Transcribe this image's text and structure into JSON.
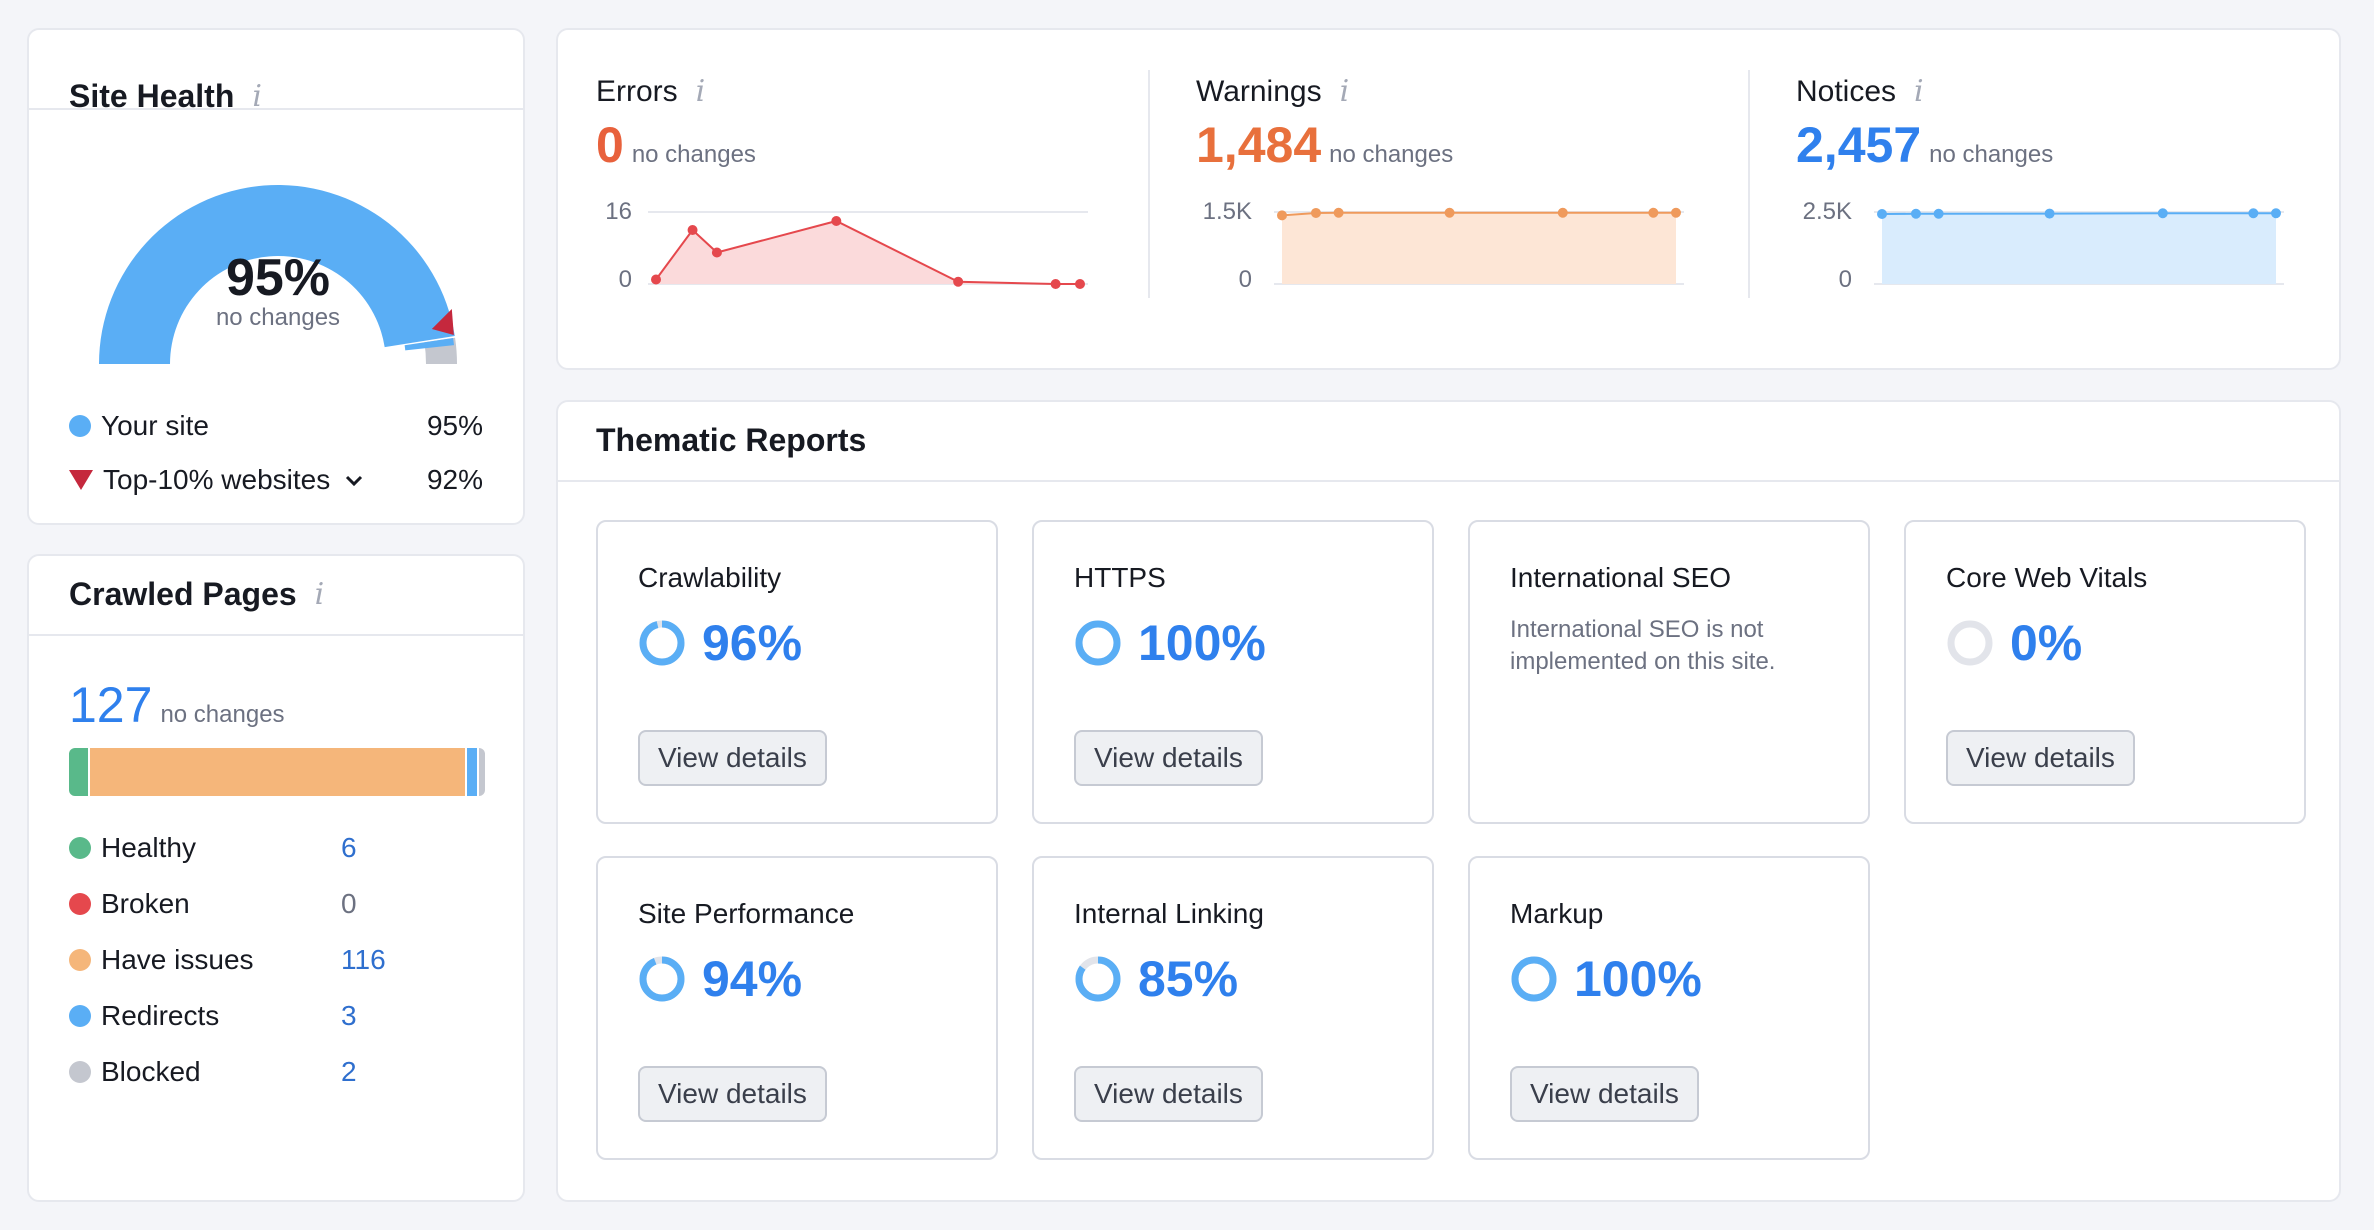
{
  "site_health": {
    "title": "Site Health",
    "value": "95%",
    "value_fraction": 0.95,
    "sub": "no changes",
    "legend": [
      {
        "label": "Your site",
        "value": "95%",
        "color": "#5aaef5"
      },
      {
        "label": "Top-10% websites",
        "value": "92%",
        "color": "#c5283d"
      }
    ]
  },
  "crawled_pages": {
    "title": "Crawled Pages",
    "total": "127",
    "sub": "no changes",
    "rows": [
      {
        "label": "Healthy",
        "value": "6",
        "count": 6,
        "color": "#59b98a"
      },
      {
        "label": "Broken",
        "value": "0",
        "count": 0,
        "color": "#e5484d"
      },
      {
        "label": "Have issues",
        "value": "116",
        "count": 116,
        "color": "#f5b67a"
      },
      {
        "label": "Redirects",
        "value": "3",
        "count": 3,
        "color": "#5aaef5"
      },
      {
        "label": "Blocked",
        "value": "2",
        "count": 2,
        "color": "#c4c7cf"
      }
    ]
  },
  "issues": [
    {
      "label": "Errors",
      "value": "0",
      "sub": "no changes",
      "value_color": "#e8613c",
      "line_color": "#e5484d",
      "fill_color": "#fbdadb",
      "y_ticks": [
        "16",
        "0"
      ],
      "y_max": 16,
      "points": [
        1,
        12,
        7,
        14,
        0.5,
        0,
        0
      ]
    },
    {
      "label": "Warnings",
      "value": "1,484",
      "sub": "no changes",
      "value_color": "#e8703c",
      "line_color": "#ef9a5c",
      "fill_color": "#fde6d6",
      "y_ticks": [
        "1.5K",
        "0"
      ],
      "y_max": 1500,
      "points": [
        1430,
        1480,
        1484,
        1484,
        1484,
        1484,
        1484
      ]
    },
    {
      "label": "Notices",
      "value": "2,457",
      "sub": "no changes",
      "value_color": "#2f80ed",
      "line_color": "#5aaef5",
      "fill_color": "#d9ecfd",
      "y_ticks": [
        "2.5K",
        "0"
      ],
      "y_max": 2500,
      "points": [
        2430,
        2440,
        2440,
        2445,
        2457,
        2457,
        2457
      ]
    }
  ],
  "thematic": {
    "title": "Thematic Reports",
    "button_label": "View details",
    "reports": [
      {
        "title": "Crawlability",
        "pct": "96%",
        "fraction": 0.96
      },
      {
        "title": "HTTPS",
        "pct": "100%",
        "fraction": 1.0
      },
      {
        "title": "International SEO",
        "desc": "International SEO is not implemented on this site."
      },
      {
        "title": "Core Web Vitals",
        "pct": "0%",
        "fraction": 0
      },
      {
        "title": "Site Performance",
        "pct": "94%",
        "fraction": 0.94
      },
      {
        "title": "Internal Linking",
        "pct": "85%",
        "fraction": 0.85
      },
      {
        "title": "Markup",
        "pct": "100%",
        "fraction": 1.0
      }
    ]
  },
  "icons": {
    "info": "i"
  },
  "colors": {
    "accent": "#2f80ed",
    "gauge_track": "#c4c7cf"
  }
}
